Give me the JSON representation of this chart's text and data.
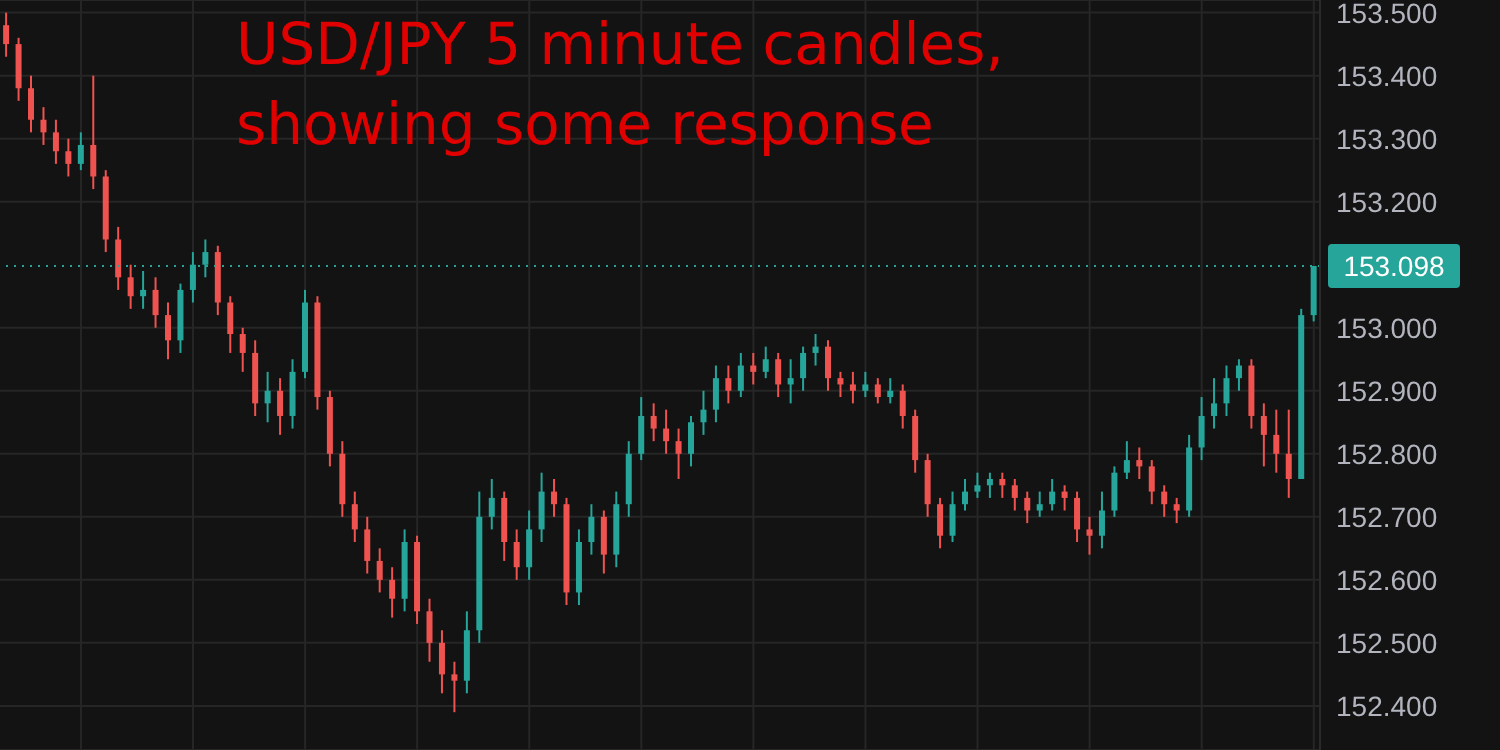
{
  "chart_data": {
    "type": "candlestick",
    "title": "USD/JPY 5 minute candles, showing some response",
    "categories": [
      null,
      null,
      null,
      null,
      null,
      null,
      null,
      null,
      null,
      null,
      null,
      null,
      null,
      null,
      null,
      null,
      null,
      null,
      null,
      null,
      null,
      null,
      null,
      null,
      null,
      null,
      null,
      null,
      null,
      null,
      null,
      null,
      null,
      null,
      null,
      null,
      null,
      null,
      null,
      null,
      null,
      null,
      null,
      null,
      null,
      null,
      null,
      null,
      null,
      null,
      null,
      null,
      null,
      null,
      null,
      null,
      null,
      null,
      null,
      null,
      null,
      null,
      null,
      null,
      null,
      null,
      null,
      null,
      null,
      null,
      null,
      null,
      null,
      null,
      null,
      null,
      null,
      null,
      null,
      null,
      null,
      null,
      null,
      null,
      null,
      null,
      null,
      null,
      null,
      null,
      null,
      null,
      null,
      null,
      null,
      null,
      null,
      null,
      null,
      null,
      null,
      null,
      null,
      null,
      null,
      null
    ],
    "ohlc": [
      [
        153.48,
        153.5,
        153.43,
        153.45
      ],
      [
        153.45,
        153.46,
        153.36,
        153.38
      ],
      [
        153.38,
        153.4,
        153.31,
        153.33
      ],
      [
        153.33,
        153.35,
        153.29,
        153.31
      ],
      [
        153.31,
        153.33,
        153.26,
        153.28
      ],
      [
        153.28,
        153.3,
        153.24,
        153.26
      ],
      [
        153.26,
        153.31,
        153.25,
        153.29
      ],
      [
        153.29,
        153.4,
        153.22,
        153.24
      ],
      [
        153.24,
        153.25,
        153.12,
        153.14
      ],
      [
        153.14,
        153.16,
        153.06,
        153.08
      ],
      [
        153.08,
        153.1,
        153.03,
        153.05
      ],
      [
        153.05,
        153.09,
        153.03,
        153.06
      ],
      [
        153.06,
        153.08,
        153.0,
        153.02
      ],
      [
        153.02,
        153.04,
        152.95,
        152.98
      ],
      [
        152.98,
        153.07,
        152.96,
        153.06
      ],
      [
        153.06,
        153.12,
        153.04,
        153.1
      ],
      [
        153.1,
        153.14,
        153.08,
        153.12
      ],
      [
        153.12,
        153.13,
        153.02,
        153.04
      ],
      [
        153.04,
        153.05,
        152.96,
        152.99
      ],
      [
        152.99,
        153.0,
        152.93,
        152.96
      ],
      [
        152.96,
        152.98,
        152.86,
        152.88
      ],
      [
        152.88,
        152.93,
        152.85,
        152.9
      ],
      [
        152.9,
        152.92,
        152.83,
        152.86
      ],
      [
        152.86,
        152.95,
        152.84,
        152.93
      ],
      [
        152.93,
        153.06,
        152.92,
        153.04
      ],
      [
        153.04,
        153.05,
        152.87,
        152.89
      ],
      [
        152.89,
        152.9,
        152.78,
        152.8
      ],
      [
        152.8,
        152.82,
        152.7,
        152.72
      ],
      [
        152.72,
        152.74,
        152.66,
        152.68
      ],
      [
        152.68,
        152.7,
        152.61,
        152.63
      ],
      [
        152.63,
        152.65,
        152.58,
        152.6
      ],
      [
        152.6,
        152.62,
        152.54,
        152.57
      ],
      [
        152.57,
        152.68,
        152.55,
        152.66
      ],
      [
        152.66,
        152.67,
        152.53,
        152.55
      ],
      [
        152.55,
        152.57,
        152.47,
        152.5
      ],
      [
        152.5,
        152.52,
        152.42,
        152.45
      ],
      [
        152.45,
        152.47,
        152.39,
        152.44
      ],
      [
        152.44,
        152.55,
        152.42,
        152.52
      ],
      [
        152.52,
        152.74,
        152.5,
        152.7
      ],
      [
        152.7,
        152.76,
        152.68,
        152.73
      ],
      [
        152.73,
        152.74,
        152.63,
        152.66
      ],
      [
        152.66,
        152.68,
        152.6,
        152.62
      ],
      [
        152.62,
        152.71,
        152.6,
        152.68
      ],
      [
        152.68,
        152.77,
        152.66,
        152.74
      ],
      [
        152.74,
        152.76,
        152.7,
        152.72
      ],
      [
        152.72,
        152.73,
        152.56,
        152.58
      ],
      [
        152.58,
        152.68,
        152.56,
        152.66
      ],
      [
        152.66,
        152.72,
        152.64,
        152.7
      ],
      [
        152.7,
        152.71,
        152.61,
        152.64
      ],
      [
        152.64,
        152.74,
        152.62,
        152.72
      ],
      [
        152.72,
        152.82,
        152.7,
        152.8
      ],
      [
        152.8,
        152.89,
        152.79,
        152.86
      ],
      [
        152.86,
        152.88,
        152.82,
        152.84
      ],
      [
        152.84,
        152.87,
        152.8,
        152.82
      ],
      [
        152.82,
        152.84,
        152.76,
        152.8
      ],
      [
        152.8,
        152.86,
        152.78,
        152.85
      ],
      [
        152.85,
        152.9,
        152.83,
        152.87
      ],
      [
        152.87,
        152.94,
        152.85,
        152.92
      ],
      [
        152.92,
        152.94,
        152.88,
        152.9
      ],
      [
        152.9,
        152.96,
        152.89,
        152.94
      ],
      [
        152.94,
        152.96,
        152.91,
        152.93
      ],
      [
        152.93,
        152.97,
        152.92,
        152.95
      ],
      [
        152.95,
        152.96,
        152.89,
        152.91
      ],
      [
        152.91,
        152.95,
        152.88,
        152.92
      ],
      [
        152.92,
        152.97,
        152.9,
        152.96
      ],
      [
        152.96,
        152.99,
        152.94,
        152.97
      ],
      [
        152.97,
        152.98,
        152.9,
        152.92
      ],
      [
        152.92,
        152.93,
        152.89,
        152.91
      ],
      [
        152.91,
        152.93,
        152.88,
        152.9
      ],
      [
        152.9,
        152.93,
        152.89,
        152.91
      ],
      [
        152.91,
        152.92,
        152.88,
        152.89
      ],
      [
        152.89,
        152.92,
        152.88,
        152.9
      ],
      [
        152.9,
        152.91,
        152.84,
        152.86
      ],
      [
        152.86,
        152.87,
        152.77,
        152.79
      ],
      [
        152.79,
        152.8,
        152.7,
        152.72
      ],
      [
        152.72,
        152.73,
        152.65,
        152.67
      ],
      [
        152.67,
        152.74,
        152.66,
        152.72
      ],
      [
        152.72,
        152.76,
        152.71,
        152.74
      ],
      [
        152.74,
        152.77,
        152.73,
        152.75
      ],
      [
        152.75,
        152.77,
        152.73,
        152.76
      ],
      [
        152.76,
        152.77,
        152.73,
        152.75
      ],
      [
        152.75,
        152.76,
        152.71,
        152.73
      ],
      [
        152.73,
        152.74,
        152.69,
        152.71
      ],
      [
        152.71,
        152.74,
        152.7,
        152.72
      ],
      [
        152.72,
        152.76,
        152.71,
        152.74
      ],
      [
        152.74,
        152.75,
        152.71,
        152.73
      ],
      [
        152.73,
        152.74,
        152.66,
        152.68
      ],
      [
        152.68,
        152.7,
        152.64,
        152.67
      ],
      [
        152.67,
        152.74,
        152.65,
        152.71
      ],
      [
        152.71,
        152.78,
        152.7,
        152.77
      ],
      [
        152.77,
        152.82,
        152.76,
        152.79
      ],
      [
        152.79,
        152.81,
        152.76,
        152.78
      ],
      [
        152.78,
        152.79,
        152.72,
        152.74
      ],
      [
        152.74,
        152.75,
        152.7,
        152.72
      ],
      [
        152.72,
        152.73,
        152.69,
        152.71
      ],
      [
        152.71,
        152.83,
        152.7,
        152.81
      ],
      [
        152.81,
        152.89,
        152.79,
        152.86
      ],
      [
        152.86,
        152.92,
        152.84,
        152.88
      ],
      [
        152.88,
        152.94,
        152.86,
        152.92
      ],
      [
        152.92,
        152.95,
        152.9,
        152.94
      ],
      [
        152.94,
        152.95,
        152.84,
        152.86
      ],
      [
        152.86,
        152.88,
        152.78,
        152.83
      ],
      [
        152.83,
        152.87,
        152.77,
        152.8
      ],
      [
        152.8,
        152.87,
        152.73,
        152.76
      ],
      [
        152.76,
        153.03,
        152.76,
        153.02
      ],
      [
        153.02,
        153.098,
        153.01,
        153.098
      ]
    ],
    "ylim": [
      152.33,
      153.52
    ],
    "yticks": [
      {
        "value": 152.4,
        "label": "152.400"
      },
      {
        "value": 152.5,
        "label": "152.500"
      },
      {
        "value": 152.6,
        "label": "152.600"
      },
      {
        "value": 152.7,
        "label": "152.700"
      },
      {
        "value": 152.8,
        "label": "152.800"
      },
      {
        "value": 152.9,
        "label": "152.900"
      },
      {
        "value": 153.0,
        "label": "153.000"
      },
      {
        "value": 153.2,
        "label": "153.200"
      },
      {
        "value": 153.3,
        "label": "153.300"
      },
      {
        "value": 153.4,
        "label": "153.400"
      },
      {
        "value": 153.5,
        "label": "153.500"
      }
    ],
    "ref_lines": [
      {
        "axis": "y",
        "value": 153.098,
        "label": "153.098",
        "color": "#26a69a",
        "line_style": "dotted"
      }
    ],
    "grid": true
  }
}
